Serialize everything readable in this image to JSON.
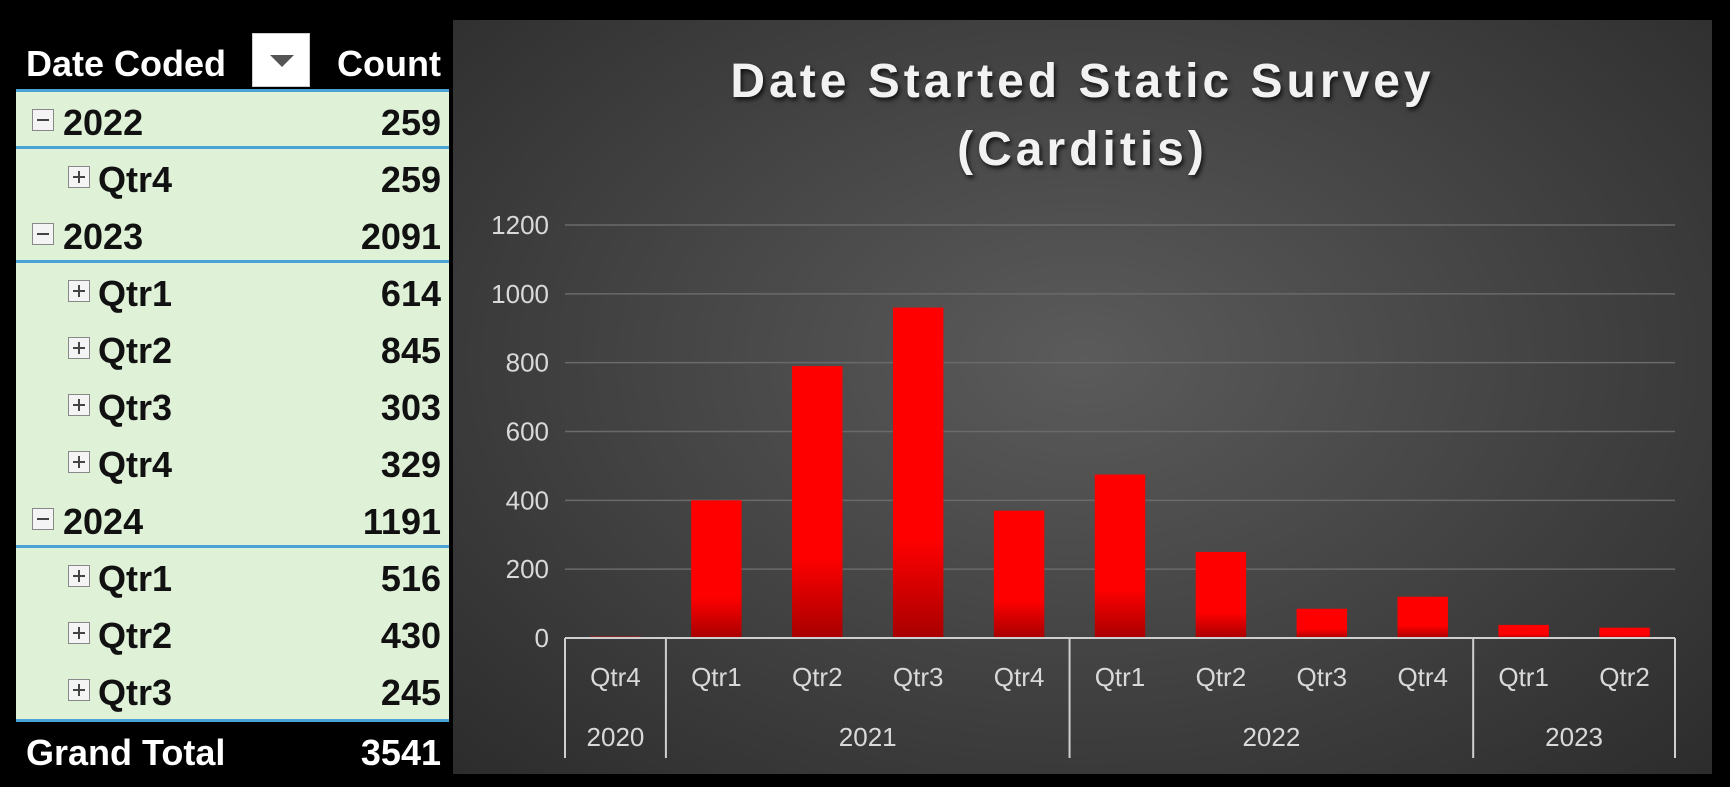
{
  "pivot": {
    "header_label": "Date Coded",
    "header_count": "Count",
    "rows": [
      {
        "type": "year",
        "label": "2022",
        "value": "259"
      },
      {
        "type": "qtr",
        "label": "Qtr4",
        "value": "259"
      },
      {
        "type": "year",
        "label": "2023",
        "value": "2091"
      },
      {
        "type": "qtr",
        "label": "Qtr1",
        "value": "614"
      },
      {
        "type": "qtr",
        "label": "Qtr2",
        "value": "845"
      },
      {
        "type": "qtr",
        "label": "Qtr3",
        "value": "303"
      },
      {
        "type": "qtr",
        "label": "Qtr4",
        "value": "329"
      },
      {
        "type": "year",
        "label": "2024",
        "value": "1191"
      },
      {
        "type": "qtr",
        "label": "Qtr1",
        "value": "516"
      },
      {
        "type": "qtr",
        "label": "Qtr2",
        "value": "430"
      },
      {
        "type": "qtr",
        "label": "Qtr3",
        "value": "245"
      }
    ],
    "total_label": "Grand Total",
    "total_value": "3541"
  },
  "colors": {
    "bar_top": "#ff0000",
    "bar_bottom": "#a80000",
    "table_bg": "#dff2d8",
    "table_rule": "#4aa3d6"
  },
  "chart_data": {
    "type": "bar",
    "title_line1": "Date Started Static Survey",
    "title_line2": "(Carditis)",
    "categories": [
      "Qtr4",
      "Qtr1",
      "Qtr2",
      "Qtr3",
      "Qtr4",
      "Qtr1",
      "Qtr2",
      "Qtr3",
      "Qtr4",
      "Qtr1",
      "Qtr2"
    ],
    "groups": [
      {
        "label": "2020",
        "count": 1
      },
      {
        "label": "2021",
        "count": 4
      },
      {
        "label": "2022",
        "count": 4
      },
      {
        "label": "2023",
        "count": 2
      }
    ],
    "values": [
      4,
      400,
      790,
      960,
      370,
      475,
      250,
      85,
      120,
      38,
      30
    ],
    "ylim": [
      0,
      1200
    ],
    "yticks": [
      0,
      200,
      400,
      600,
      800,
      1000,
      1200
    ],
    "grid": true,
    "legend": "none"
  }
}
